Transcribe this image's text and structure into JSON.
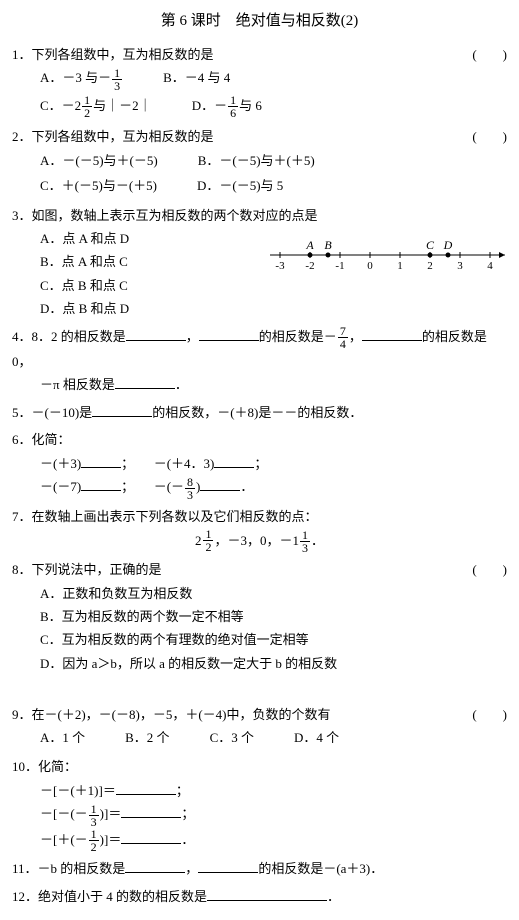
{
  "title": "第 6 课时　绝对值与相反数(2)",
  "paren": "(　　)",
  "blank": "",
  "q1": {
    "num": "1．",
    "stem": "下列各组数中，互为相反数的是",
    "a_pre": "A．－3 与－",
    "a_n": "1",
    "a_d": "3",
    "b": "B．－4 与 4",
    "c_pre": "C．－2",
    "c_n": "1",
    "c_d": "2",
    "c_post": "与｜－2｜",
    "d_pre": "D．－",
    "d_n": "1",
    "d_d": "6",
    "d_post": "与 6"
  },
  "q2": {
    "num": "2．",
    "stem": "下列各组数中，互为相反数的是",
    "a": "A．－(－5)与＋(－5)",
    "b": "B．－(－5)与＋(＋5)",
    "c": "C．＋(－5)与－(＋5)",
    "d": "D．－(－5)与 5"
  },
  "q3": {
    "num": "3．",
    "stem": "如图，数轴上表示互为相反数的两个数对应的点是",
    "a": "A．点 A 和点 D",
    "b": "B．点 A 和点 C",
    "c": "C．点 B 和点 C",
    "d": "D．点 B 和点 D",
    "ticks": [
      "-3",
      "-2",
      "-1",
      "0",
      "1",
      "2",
      "3",
      "4"
    ],
    "points": [
      {
        "label": "A",
        "x": -2
      },
      {
        "label": "B",
        "x": -1.4
      },
      {
        "label": "C",
        "x": 2
      },
      {
        "label": "D",
        "x": 2.6
      }
    ]
  },
  "q4": {
    "num": "4．",
    "t1": "8．2 的相反数是",
    "t2": "，",
    "t3": "的相反数是－",
    "fn": "7",
    "fd": "4",
    "t4": "，",
    "t5": "的相反数是 0，",
    "t6": "－π 相反数是",
    "t7": "．"
  },
  "q5": {
    "num": "5．",
    "t1": "－(－10)是",
    "t2": "的相反数，－(＋8)是－－的相反数．"
  },
  "q6": {
    "num": "6．",
    "stem": "化简：",
    "r1a": "－(＋3)",
    "r1b": "；",
    "r1c": "－(＋4．3)",
    "r1d": "；",
    "r2a": "－(－7)",
    "r2b": "；",
    "r2c_pre": "－(－",
    "r2c_n": "8",
    "r2c_d": "3",
    "r2c_post": ")",
    "r2d": "．"
  },
  "q7": {
    "num": "7．",
    "stem": "在数轴上画出表示下列各数以及它们相反数的点：",
    "v1w": "2",
    "v1n": "1",
    "v1d": "2",
    "v2": "，－3，0，－1",
    "v3n": "1",
    "v3d": "3",
    "v3post": "．"
  },
  "q8": {
    "num": "8．",
    "stem": "下列说法中，正确的是",
    "a": "A．正数和负数互为相反数",
    "b": "B．互为相反数的两个数一定不相等",
    "c": "C．互为相反数的两个有理数的绝对值一定相等",
    "d": "D．因为 a＞b，所以 a 的相反数一定大于 b 的相反数"
  },
  "q9": {
    "num": "9．",
    "stem": "在－(＋2)，－(－8)，－5，＋(－4)中，负数的个数有",
    "a": "A．1 个",
    "b": "B．2 个",
    "c": "C．3 个",
    "d": "D．4 个"
  },
  "q10": {
    "num": "10．",
    "stem": "化简：",
    "r1": "－[－(＋1)]＝",
    "r1end": "；",
    "r2a": "－[－(－",
    "r2n": "1",
    "r2d": "3",
    "r2b": ")]＝",
    "r2end": "；",
    "r3a": "－[＋(－",
    "r3n": "1",
    "r3d": "2",
    "r3b": ")]＝",
    "r3end": "．"
  },
  "q11": {
    "num": "11．",
    "t1": "－b 的相反数是",
    "t2": "，",
    "t3": "的相反数是－(a＋3)．"
  },
  "q12": {
    "num": "12．",
    "t1": "绝对值小于 4 的数的相反数是",
    "t2": "．"
  }
}
